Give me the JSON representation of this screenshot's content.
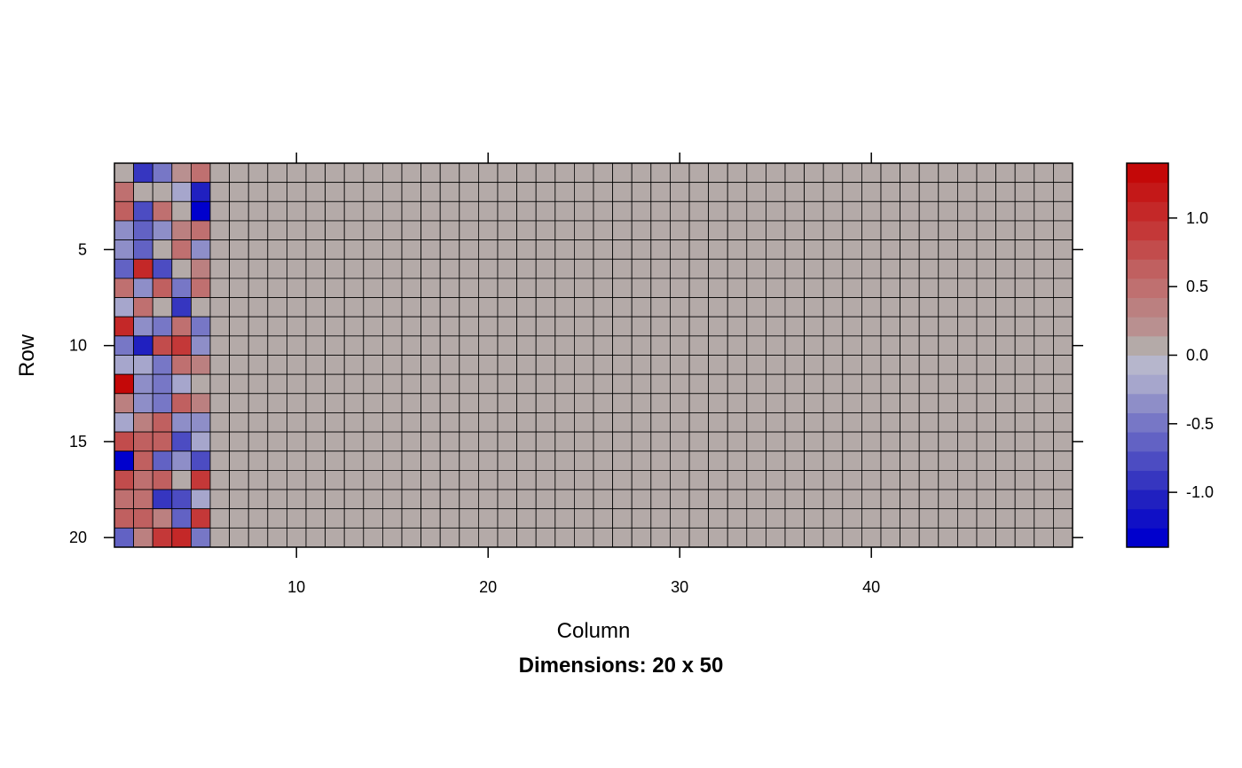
{
  "chart_data": {
    "type": "heatmap",
    "title": "",
    "subtitle": "Dimensions: 20 x 50",
    "xlabel": "Column",
    "ylabel": "Row",
    "n_rows": 20,
    "n_cols": 50,
    "x_ticks": [
      10,
      20,
      30,
      40
    ],
    "y_ticks": [
      5,
      10,
      15,
      20
    ],
    "x_tick_labels": [
      "10",
      "20",
      "30",
      "40"
    ],
    "y_tick_labels": [
      "5",
      "10",
      "15",
      "20"
    ],
    "grid": true,
    "fill_value_other_columns": 0.0,
    "values_first_5_columns": [
      [
        0.0,
        -0.95,
        -0.45,
        0.25,
        0.5
      ],
      [
        0.55,
        0.0,
        0.0,
        -0.15,
        -1.05
      ],
      [
        0.7,
        -0.75,
        0.55,
        0.0,
        -1.4
      ],
      [
        -0.3,
        -0.6,
        -0.4,
        0.3,
        0.55
      ],
      [
        -0.3,
        -0.6,
        0.0,
        0.55,
        -0.4
      ],
      [
        -0.7,
        1.0,
        -0.8,
        0.0,
        0.3
      ],
      [
        0.55,
        -0.4,
        0.6,
        -0.45,
        0.55
      ],
      [
        -0.2,
        0.5,
        0.0,
        -0.85,
        0.0
      ],
      [
        1.0,
        -0.35,
        -0.5,
        0.5,
        -0.45
      ],
      [
        -0.5,
        -1.1,
        0.8,
        0.9,
        -0.4
      ],
      [
        -0.2,
        -0.15,
        -0.45,
        0.5,
        0.3
      ],
      [
        1.35,
        -0.35,
        -0.45,
        -0.15,
        0.0
      ],
      [
        0.4,
        -0.35,
        -0.45,
        0.7,
        0.3
      ],
      [
        -0.2,
        0.35,
        0.6,
        -0.35,
        -0.4
      ],
      [
        0.8,
        0.65,
        0.65,
        -0.75,
        -0.15
      ],
      [
        -1.35,
        0.6,
        -0.65,
        -0.4,
        -0.75
      ],
      [
        0.75,
        0.55,
        0.65,
        0.0,
        0.9
      ],
      [
        0.45,
        0.55,
        -0.95,
        -0.75,
        -0.15
      ],
      [
        0.6,
        0.6,
        0.35,
        -0.6,
        0.85
      ],
      [
        -0.6,
        0.3,
        0.95,
        1.0,
        -0.45
      ]
    ],
    "colorbar": {
      "min": -1.4,
      "max": 1.4,
      "ticks": [
        -1.0,
        -0.5,
        0.0,
        0.5,
        1.0
      ],
      "tick_labels": [
        "-1.0",
        "-0.5",
        "0.0",
        "0.5",
        "1.0"
      ],
      "levels": [
        -1.4,
        -1.26,
        -1.12,
        -0.98,
        -0.84,
        -0.7,
        -0.56,
        -0.42,
        -0.28,
        -0.14,
        0.0,
        0.14,
        0.28,
        0.42,
        0.56,
        0.7,
        0.84,
        0.98,
        1.12,
        1.26,
        1.4
      ],
      "colors": [
        "#0000cd",
        "#1010c6",
        "#2020c0",
        "#3636c0",
        "#4c4cc2",
        "#6262c4",
        "#7777c6",
        "#8e8ec8",
        "#a6a6cc",
        "#b6b6cc",
        "#b4aaa8",
        "#b99090",
        "#bb8080",
        "#bf7070",
        "#c06060",
        "#c24c4c",
        "#c43838",
        "#c42828",
        "#c41818",
        "#c40808"
      ]
    }
  }
}
